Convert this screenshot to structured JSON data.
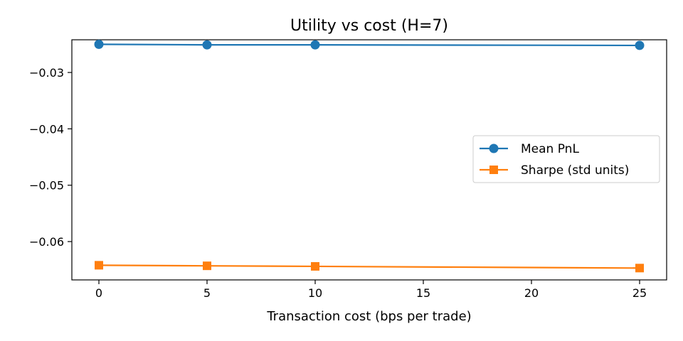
{
  "chart_data": {
    "type": "line",
    "title": "Utility vs cost (H=7)",
    "xlabel": "Transaction cost (bps per trade)",
    "ylabel": "",
    "x": [
      0,
      5,
      10,
      25
    ],
    "xlim": [
      -1.25,
      26.25
    ],
    "ylim": [
      -0.0668,
      -0.0242
    ],
    "xticks": [
      0,
      5,
      10,
      15,
      20,
      25
    ],
    "xtick_labels": [
      "0",
      "5",
      "10",
      "15",
      "20",
      "25"
    ],
    "yticks": [
      -0.03,
      -0.04,
      -0.05,
      -0.06
    ],
    "ytick_labels": [
      "−0.03",
      "−0.04",
      "−0.05",
      "−0.06"
    ],
    "grid": false,
    "legend_position": "center-right",
    "series": [
      {
        "name": "Mean PnL",
        "values": [
          -0.025,
          -0.0251,
          -0.0251,
          -0.0252
        ],
        "color": "#1f77b4",
        "marker": "circle"
      },
      {
        "name": "Sharpe (std units)",
        "values": [
          -0.0642,
          -0.0643,
          -0.0644,
          -0.0647
        ],
        "color": "#ff7f0e",
        "marker": "square"
      }
    ]
  }
}
